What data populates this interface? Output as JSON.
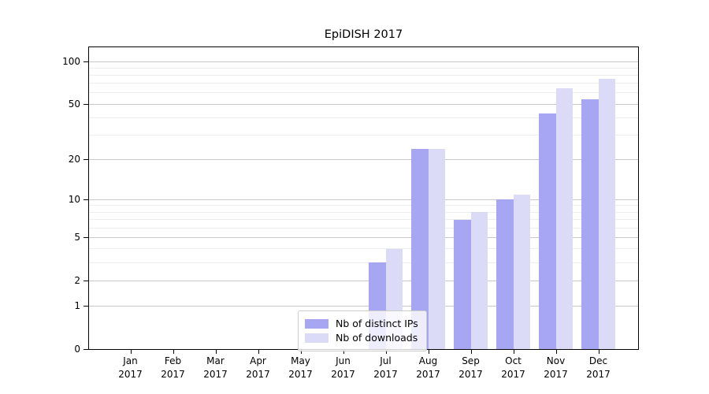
{
  "title": "EpiDISH 2017",
  "chart_data": {
    "type": "bar",
    "title": "EpiDISH 2017",
    "categories": [
      "Jan 2017",
      "Feb 2017",
      "Mar 2017",
      "Apr 2017",
      "May 2017",
      "Jun 2017",
      "Jul 2017",
      "Aug 2017",
      "Sep 2017",
      "Oct 2017",
      "Nov 2017",
      "Dec 2017"
    ],
    "series": [
      {
        "name": "Nb of distinct IPs",
        "color": "#a6a6f2",
        "values": [
          0,
          0,
          0,
          0,
          0,
          0,
          3,
          24,
          7,
          10,
          43,
          54
        ]
      },
      {
        "name": "Nb of downloads",
        "color": "#dbdbf8",
        "values": [
          0,
          0,
          0,
          0,
          0,
          0,
          4,
          24,
          8,
          11,
          65,
          76
        ]
      }
    ],
    "yscale": "log1p",
    "ylim": [
      0,
      126
    ],
    "yticks_labeled": [
      100,
      50,
      20,
      10,
      5,
      2,
      1,
      0
    ],
    "yticks_minor": [
      3,
      4,
      6,
      7,
      8,
      9,
      30,
      40,
      60,
      70,
      80,
      90
    ],
    "grid": true,
    "legend_position": "inside-bottom-center",
    "xlabel": "",
    "ylabel": ""
  },
  "legend": {
    "entries": [
      "Nb of distinct IPs",
      "Nb of downloads"
    ]
  },
  "colors": {
    "bar_distinct_ips": "#a6a6f2",
    "bar_downloads": "#dbdbf8",
    "grid_major": "#c8c8c8",
    "grid_minor": "#ededed",
    "axis": "#000000",
    "legend_border": "#cccccc",
    "background": "#ffffff"
  }
}
